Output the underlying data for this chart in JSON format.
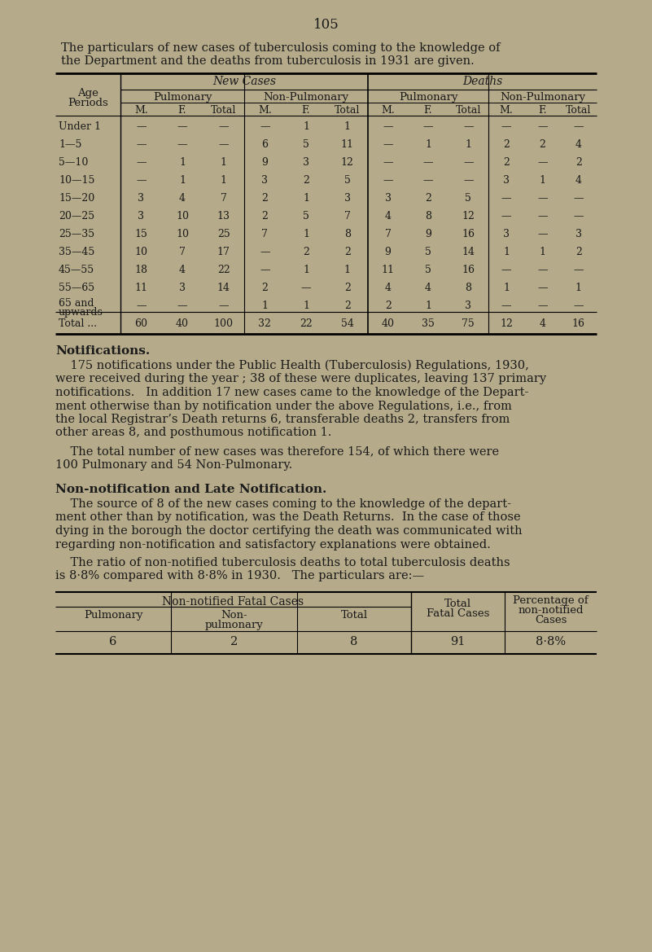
{
  "bg_color": "#b5aa8a",
  "text_color": "#1a1a1a",
  "page_number": "105",
  "intro_line1": "The particulars of new cases of tuberculosis coming to the knowledge of",
  "intro_line2": "the Department and the deaths from tuberculosis in 1931 are given.",
  "table1": {
    "age_periods": [
      "Under 1",
      "1—5",
      "5—10",
      "10—15",
      "15—20",
      "20—25",
      "25—35",
      "35—45",
      "45—55",
      "55—65",
      "65 and upwards",
      "Total ..."
    ],
    "new_pulmonary": [
      [
        "—",
        "—",
        "—"
      ],
      [
        "—",
        "—",
        "—"
      ],
      [
        "—",
        "1",
        "1"
      ],
      [
        "—",
        "1",
        "1"
      ],
      [
        "3",
        "4",
        "7"
      ],
      [
        "3",
        "10",
        "13"
      ],
      [
        "15",
        "10",
        "25"
      ],
      [
        "10",
        "7",
        "17"
      ],
      [
        "18",
        "4",
        "22"
      ],
      [
        "11",
        "3",
        "14"
      ],
      [
        "—",
        "—",
        "—"
      ],
      [
        "60",
        "40",
        "100"
      ]
    ],
    "new_nonpulmonary": [
      [
        "—",
        "1",
        "1"
      ],
      [
        "6",
        "5",
        "11"
      ],
      [
        "9",
        "3",
        "12"
      ],
      [
        "3",
        "2",
        "5"
      ],
      [
        "2",
        "1",
        "3"
      ],
      [
        "2",
        "5",
        "7"
      ],
      [
        "7",
        "1",
        "8"
      ],
      [
        "—",
        "2",
        "2"
      ],
      [
        "—",
        "1",
        "1"
      ],
      [
        "2",
        "—",
        "2"
      ],
      [
        "1",
        "1",
        "2"
      ],
      [
        "32",
        "22",
        "54"
      ]
    ],
    "deaths_pulmonary": [
      [
        "—",
        "—",
        "—"
      ],
      [
        "—",
        "1",
        "1"
      ],
      [
        "—",
        "—",
        "—"
      ],
      [
        "—",
        "—",
        "—"
      ],
      [
        "3",
        "2",
        "5"
      ],
      [
        "4",
        "8",
        "12"
      ],
      [
        "7",
        "9",
        "16"
      ],
      [
        "9",
        "5",
        "14"
      ],
      [
        "11",
        "5",
        "16"
      ],
      [
        "4",
        "4",
        "8"
      ],
      [
        "2",
        "1",
        "3"
      ],
      [
        "40",
        "35",
        "75"
      ]
    ],
    "deaths_nonpulmonary": [
      [
        "—",
        "—",
        "—"
      ],
      [
        "2",
        "2",
        "4"
      ],
      [
        "2",
        "—",
        "2"
      ],
      [
        "3",
        "1",
        "4"
      ],
      [
        "—",
        "—",
        "—"
      ],
      [
        "—",
        "—",
        "—"
      ],
      [
        "3",
        "—",
        "3"
      ],
      [
        "1",
        "1",
        "2"
      ],
      [
        "—",
        "—",
        "—"
      ],
      [
        "1",
        "—",
        "1"
      ],
      [
        "—",
        "—",
        "—"
      ],
      [
        "12",
        "4",
        "16"
      ]
    ]
  },
  "notifications_bold": "Notifications.",
  "notifications_text_lines": [
    "    175 notifications under the Public Health (Tuberculosis) Regulations, 1930,",
    "were received during the year ; 38 of these were duplicates, leaving 137 primary",
    "notifications.   In addition 17 new cases came to the knowledge of the Depart-",
    "ment otherwise than by notification under the above Regulations, i.e., from",
    "the local Registrar’s Death returns 6, transferable deaths 2, transfers from",
    "other areas 8, and posthumous notification 1."
  ],
  "total_text_lines": [
    "    The total number of new cases was therefore 154, of which there were",
    "100 Pulmonary and 54 Non-Pulmonary."
  ],
  "nonnotif_bold": "Non-notification and Late Notification.",
  "nonnotif_text_lines": [
    "    The source of 8 of the new cases coming to the knowledge of the depart-",
    "ment other than by notification, was the Death Returns.  In the case of those",
    "dying in the borough the doctor certifying the death was communicated with",
    "regarding non-notification and satisfactory explanations were obtained."
  ],
  "ratio_text_lines": [
    "    The ratio of non-notified tuberculosis deaths to total tuberculosis deaths",
    "is 8·8% compared with 8·8% in 1930.   The particulars are:—"
  ]
}
